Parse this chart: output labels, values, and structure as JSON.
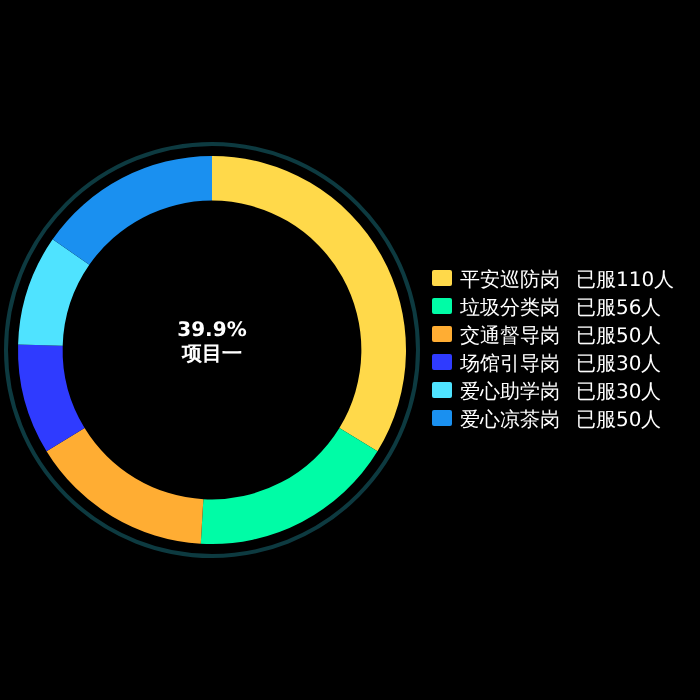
{
  "chart_data": {
    "type": "donut",
    "categories": [
      "平安巡防岗",
      "垃圾分类岗",
      "交通督导岗",
      "场馆引导岗",
      "爱心助学岗",
      "爱心凉茶岗"
    ],
    "values": [
      110,
      56,
      50,
      30,
      30,
      50
    ],
    "value_labels": [
      "已服110人",
      "已服56人",
      "已服50人",
      "已服30人",
      "已服30人",
      "已服50人"
    ],
    "colors": [
      "#ffd94a",
      "#00fca6",
      "#ffad33",
      "#2f3bff",
      "#4fe3ff",
      "#1a90f0"
    ],
    "annotations": [
      "39.9%",
      "项目一"
    ],
    "legend": "right"
  }
}
